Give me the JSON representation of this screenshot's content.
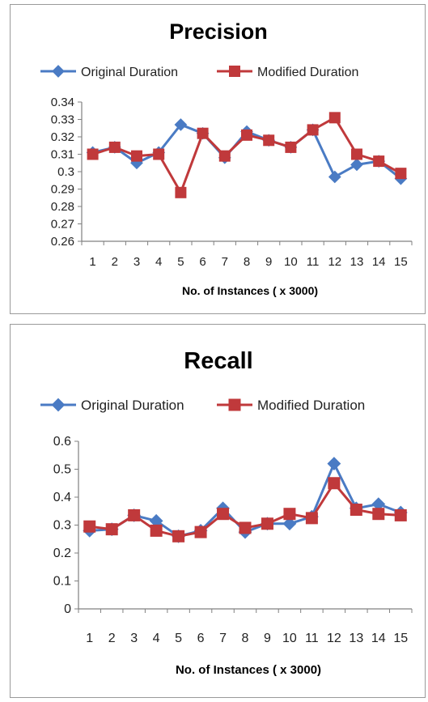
{
  "colors": {
    "original": "#4a7bc4",
    "modified": "#c0393b",
    "axis": "#808080"
  },
  "chart_data": [
    {
      "type": "line",
      "title": "Precision",
      "xlabel": "No. of Instances ( x 3000)",
      "ylabel": "",
      "categories": [
        "1",
        "2",
        "3",
        "4",
        "5",
        "6",
        "7",
        "8",
        "9",
        "10",
        "11",
        "12",
        "13",
        "14",
        "15"
      ],
      "ylim": [
        0.26,
        0.34
      ],
      "yticks": [
        "0.34",
        "0.33",
        "0.32",
        "0.31",
        "0.3",
        "0.29",
        "0.28",
        "0.27",
        "0.26"
      ],
      "grid": false,
      "legend_position": "top",
      "series": [
        {
          "name": "Original Duration",
          "marker": "diamond",
          "values": [
            0.311,
            0.314,
            0.305,
            0.311,
            0.327,
            0.322,
            0.308,
            0.323,
            0.318,
            0.314,
            0.324,
            0.297,
            0.304,
            0.306,
            0.296
          ]
        },
        {
          "name": "Modified Duration",
          "marker": "square",
          "values": [
            0.31,
            0.314,
            0.309,
            0.31,
            0.288,
            0.322,
            0.309,
            0.321,
            0.318,
            0.314,
            0.324,
            0.331,
            0.31,
            0.306,
            0.299
          ]
        }
      ]
    },
    {
      "type": "line",
      "title": "Recall",
      "xlabel": "No. of Instances ( x 3000)",
      "ylabel": "",
      "categories": [
        "1",
        "2",
        "3",
        "4",
        "5",
        "6",
        "7",
        "8",
        "9",
        "10",
        "11",
        "12",
        "13",
        "14",
        "15"
      ],
      "ylim": [
        0,
        0.6
      ],
      "yticks": [
        "0.6",
        "0.5",
        "0.4",
        "0.3",
        "0.2",
        "0.1",
        "0"
      ],
      "grid": false,
      "legend_position": "top",
      "series": [
        {
          "name": "Original Duration",
          "marker": "diamond",
          "values": [
            0.28,
            0.285,
            0.335,
            0.315,
            0.26,
            0.28,
            0.36,
            0.275,
            0.305,
            0.305,
            0.33,
            0.52,
            0.36,
            0.375,
            0.345
          ]
        },
        {
          "name": "Modified Duration",
          "marker": "square",
          "values": [
            0.295,
            0.285,
            0.335,
            0.28,
            0.26,
            0.275,
            0.34,
            0.29,
            0.305,
            0.34,
            0.325,
            0.45,
            0.355,
            0.34,
            0.335
          ]
        }
      ]
    }
  ]
}
